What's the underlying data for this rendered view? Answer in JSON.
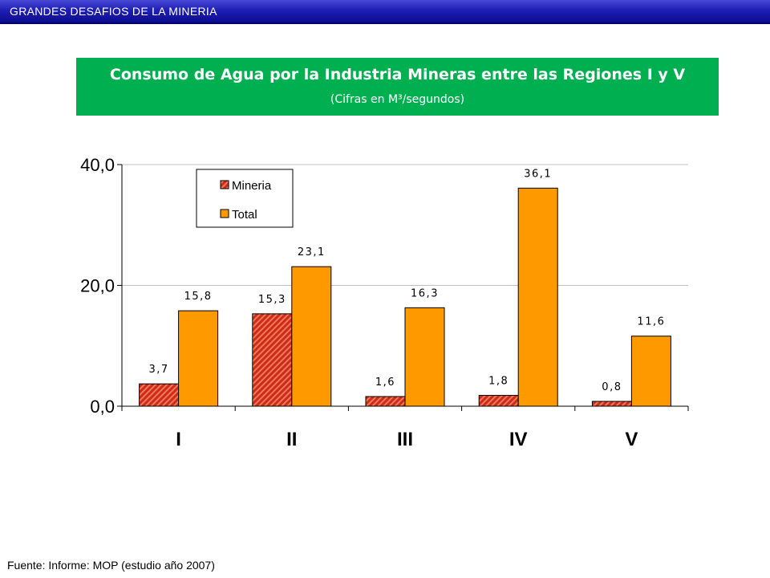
{
  "top_bar": {
    "title": "GRANDES DESAFIOS DE LA MINERIA"
  },
  "header": {
    "title": "Consumo de Agua por la Industria Mineras entre las Regiones I y V",
    "subtitle": "(Cifras en M³/segundos)"
  },
  "source": "Fuente: Informe: MOP (estudio año 2007)",
  "colors": {
    "top_bar": "#1e1eb4",
    "header_bg": "#00b050",
    "mineria_fill": "#cc2a1e",
    "total_fill": "#ff9900"
  },
  "chart_data": {
    "type": "bar",
    "categories": [
      "I",
      "II",
      "III",
      "IV",
      "V"
    ],
    "series": [
      {
        "name": "Mineria",
        "values": [
          3.7,
          15.3,
          1.6,
          1.8,
          0.8
        ],
        "labels": [
          "3,7",
          "15,3",
          "1,6",
          "1,8",
          "0,8"
        ]
      },
      {
        "name": "Total",
        "values": [
          15.8,
          23.1,
          16.3,
          36.1,
          11.6
        ],
        "labels": [
          "15,8",
          "23,1",
          "16,3",
          "36,1",
          "11,6"
        ]
      }
    ],
    "yticks": [
      "0,0",
      "20,0",
      "40,0"
    ],
    "ytick_values": [
      0,
      20,
      40
    ],
    "ylim": [
      0,
      40
    ],
    "grid": true,
    "legend_position": "top-left"
  }
}
